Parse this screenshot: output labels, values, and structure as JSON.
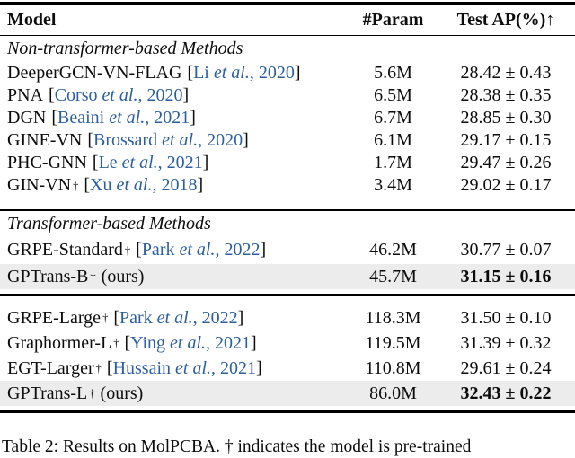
{
  "table": {
    "header": {
      "model": "Model",
      "param": "#Param",
      "test_ap": "Test AP(%)↑"
    },
    "etal": "et al.",
    "dagger": "†",
    "sections": [
      {
        "title": "Non-transformer-based Methods",
        "rows": [
          {
            "model": "DeeperGCN-VN-FLAG",
            "dagger": false,
            "cite": {
              "author": "Li",
              "year": "2020"
            },
            "suffix": null,
            "param": "5.6M",
            "test_ap": "28.42 ± 0.43",
            "bold": false,
            "highlight": false
          },
          {
            "model": "PNA",
            "dagger": false,
            "cite": {
              "author": "Corso",
              "year": "2020"
            },
            "suffix": null,
            "param": "6.5M",
            "test_ap": "28.38 ± 0.35",
            "bold": false,
            "highlight": false
          },
          {
            "model": "DGN",
            "dagger": false,
            "cite": {
              "author": "Beaini",
              "year": "2021"
            },
            "suffix": null,
            "param": "6.7M",
            "test_ap": "28.85 ± 0.30",
            "bold": false,
            "highlight": false
          },
          {
            "model": "GINE-VN",
            "dagger": false,
            "cite": {
              "author": "Brossard",
              "year": "2020"
            },
            "suffix": null,
            "param": "6.1M",
            "test_ap": "29.17 ± 0.15",
            "bold": false,
            "highlight": false
          },
          {
            "model": "PHC-GNN",
            "dagger": false,
            "cite": {
              "author": "Le",
              "year": "2021"
            },
            "suffix": null,
            "param": "1.7M",
            "test_ap": "29.47 ± 0.26",
            "bold": false,
            "highlight": false
          },
          {
            "model": "GIN-VN",
            "dagger": true,
            "cite": {
              "author": "Xu",
              "year": "2018"
            },
            "suffix": null,
            "param": "3.4M",
            "test_ap": "29.02 ± 0.17",
            "bold": false,
            "highlight": false
          }
        ]
      },
      {
        "title": "Transformer-based Methods",
        "rows": [
          {
            "model": "GRPE-Standard",
            "dagger": true,
            "cite": {
              "author": "Park",
              "year": "2022"
            },
            "suffix": null,
            "param": "46.2M",
            "test_ap": "30.77 ± 0.07",
            "bold": false,
            "highlight": false
          },
          {
            "model": "GPTrans-B",
            "dagger": true,
            "cite": null,
            "suffix": "(ours)",
            "param": "45.7M",
            "test_ap": "31.15 ± 0.16",
            "bold": true,
            "highlight": true
          }
        ]
      },
      {
        "title": null,
        "rows": [
          {
            "model": "GRPE-Large",
            "dagger": true,
            "cite": {
              "author": "Park",
              "year": "2022"
            },
            "suffix": null,
            "param": "118.3M",
            "test_ap": "31.50 ± 0.10",
            "bold": false,
            "highlight": false
          },
          {
            "model": "Graphormer-L",
            "dagger": true,
            "cite": {
              "author": "Ying",
              "year": "2021"
            },
            "suffix": null,
            "param": "119.5M",
            "test_ap": "31.39 ± 0.32",
            "bold": false,
            "highlight": false
          },
          {
            "model": "EGT-Larger",
            "dagger": true,
            "cite": {
              "author": "Hussain",
              "year": "2021"
            },
            "suffix": null,
            "param": "110.8M",
            "test_ap": "29.61 ± 0.24",
            "bold": false,
            "highlight": false
          },
          {
            "model": "GPTrans-L",
            "dagger": true,
            "cite": null,
            "suffix": "(ours)",
            "param": "86.0M",
            "test_ap": "32.43 ± 0.22",
            "bold": true,
            "highlight": true
          }
        ]
      }
    ],
    "caption": "Table 2: Results on MolPCBA. † indicates the model is pre-trained"
  },
  "colors": {
    "citation_blue": "#2d5f9e",
    "highlight_gray": "#ececec",
    "text_black": "#0c0c0c"
  }
}
